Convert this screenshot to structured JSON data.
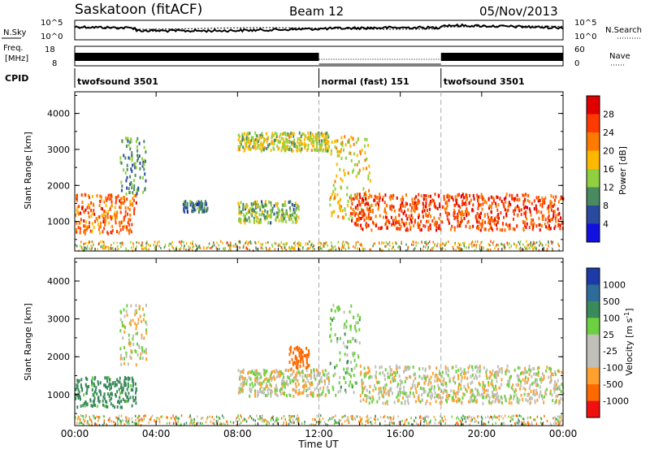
{
  "header": {
    "station": "Saskatoon (fitACF)",
    "beam": "Beam 12",
    "date": "05/Nov/2013"
  },
  "top_panels": {
    "nsky_label": "N.Sky",
    "nsearch_label": "N.Search",
    "noise_axis": [
      "10^5",
      "10^0"
    ],
    "freq_label_line1": "Freq.",
    "freq_label_line2": "[MHz]",
    "freq_axis": [
      "18",
      "8"
    ],
    "nave_label": "Nave",
    "nave_axis": [
      "60",
      "0"
    ],
    "cpid_label": "CPID",
    "cpid_segments": [
      {
        "name": "twofsound 3501",
        "start": 0.0,
        "end": 12.0
      },
      {
        "name": "normal (fast) 151",
        "start": 12.0,
        "end": 18.0
      },
      {
        "name": "twofsound 3501",
        "start": 18.0,
        "end": 24.0
      }
    ]
  },
  "x_axis": {
    "label": "Time UT",
    "ticks": [
      "00:00",
      "04:00",
      "08:00",
      "12:00",
      "16:00",
      "20:00",
      "00:00"
    ]
  },
  "power_panel": {
    "ylabel": "Slant Range [km]",
    "yticks": [
      "4000",
      "3000",
      "2000",
      "1000"
    ],
    "colorbar_label": "Power [dB]",
    "colorbar_ticks": [
      "28",
      "24",
      "20",
      "16",
      "12",
      "8",
      "4"
    ],
    "colorbar_colors": [
      "#e00000",
      "#ff3a00",
      "#ff7a00",
      "#ffb800",
      "#90d040",
      "#4a8a60",
      "#2a4aa0",
      "#1010e0"
    ]
  },
  "velocity_panel": {
    "ylabel": "Slant Range [km]",
    "yticks": [
      "4000",
      "3000",
      "2000",
      "1000"
    ],
    "colorbar_label": "Velocity [m s",
    "colorbar_label_sup": "-1",
    "colorbar_label_end": "]",
    "colorbar_ticks": [
      "1000",
      "500",
      "100",
      "25",
      "-25",
      "-100",
      "-500",
      "-1000"
    ],
    "colorbar_colors": [
      "#1c3aa8",
      "#2d6c9a",
      "#3a8a5c",
      "#6cd040",
      "#c0c0b8",
      "#c0c0b8",
      "#ffa030",
      "#ff6a00",
      "#f01010"
    ]
  },
  "chart_data": [
    {
      "type": "heatmap",
      "title": "Power [dB]",
      "xlabel": "Time UT",
      "ylabel": "Slant Range [km]",
      "xlim": [
        0,
        24
      ],
      "ylim": [
        180,
        4600
      ],
      "clim": [
        0,
        30
      ],
      "colorbar_ticks": [
        4,
        8,
        12,
        16,
        20,
        24,
        28
      ],
      "regions": [
        {
          "t0": 0.0,
          "t1": 3.0,
          "r0": 700,
          "r1": 1800,
          "power": 22
        },
        {
          "t0": 2.2,
          "t1": 3.5,
          "r0": 1800,
          "r1": 3400,
          "power": 10
        },
        {
          "t0": 5.3,
          "t1": 6.5,
          "r0": 1300,
          "r1": 1600,
          "power": 8
        },
        {
          "t0": 8.0,
          "t1": 11.0,
          "r0": 1000,
          "r1": 1600,
          "power": 12
        },
        {
          "t0": 8.0,
          "t1": 12.5,
          "r0": 3000,
          "r1": 3500,
          "power": 14
        },
        {
          "t0": 12.5,
          "t1": 14.5,
          "r0": 1000,
          "r1": 3400,
          "power": 16
        },
        {
          "t0": 13.5,
          "t1": 24.0,
          "r0": 800,
          "r1": 1800,
          "power": 24
        }
      ]
    },
    {
      "type": "heatmap",
      "title": "Velocity [m s-1]",
      "xlabel": "Time UT",
      "ylabel": "Slant Range [km]",
      "xlim": [
        0,
        24
      ],
      "ylim": [
        180,
        4600
      ],
      "clim": [
        -1000,
        1000
      ],
      "colorbar_ticks": [
        1000,
        500,
        100,
        25,
        -25,
        -100,
        -500,
        -1000
      ],
      "regions": [
        {
          "t0": 0.0,
          "t1": 3.0,
          "r0": 700,
          "r1": 1500,
          "velocity": 150
        },
        {
          "t0": 2.2,
          "t1": 3.5,
          "r0": 1800,
          "r1": 3400,
          "velocity": 0
        },
        {
          "t0": 8.0,
          "t1": 12.5,
          "r0": 1000,
          "r1": 1700,
          "velocity": 0
        },
        {
          "t0": 10.5,
          "t1": 11.5,
          "r0": 1700,
          "r1": 2300,
          "velocity": -200
        },
        {
          "t0": 12.5,
          "t1": 14.0,
          "r0": 1000,
          "r1": 3400,
          "velocity": 60
        },
        {
          "t0": 14.0,
          "t1": 24.0,
          "r0": 800,
          "r1": 1800,
          "velocity": 0
        }
      ]
    }
  ]
}
